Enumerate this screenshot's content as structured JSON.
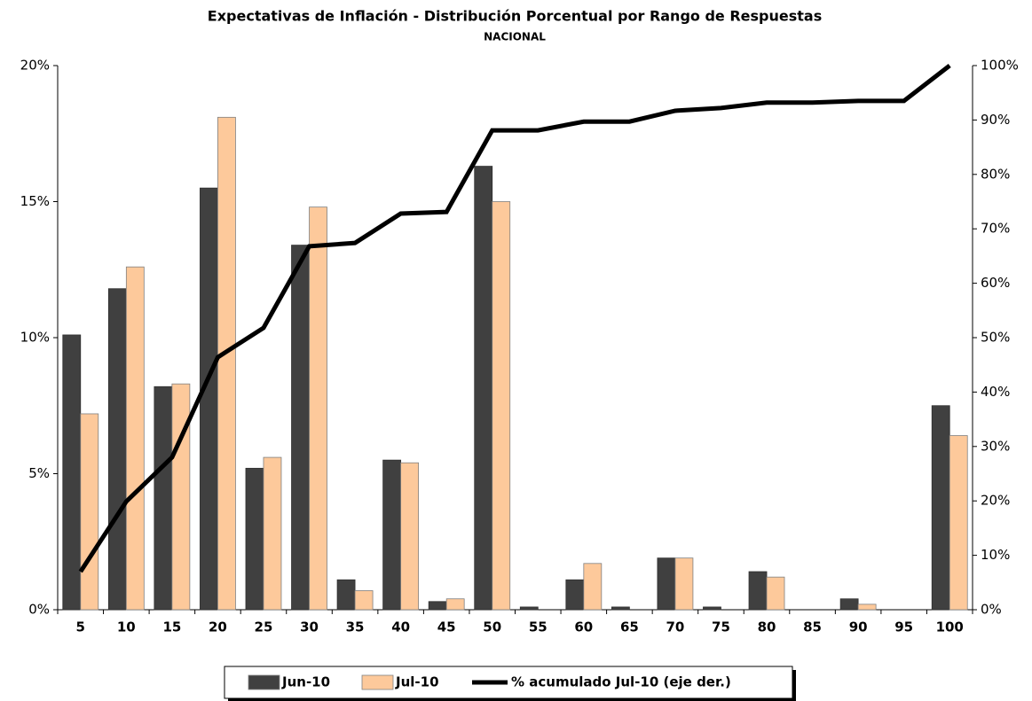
{
  "chart_data": {
    "type": "bar",
    "title": "Expectativas de Inflación - Distribución Porcentual por Rango de Respuestas",
    "subtitle": "NACIONAL",
    "categories": [
      "5",
      "10",
      "15",
      "20",
      "25",
      "30",
      "35",
      "40",
      "45",
      "50",
      "55",
      "60",
      "65",
      "70",
      "75",
      "80",
      "85",
      "90",
      "95",
      "100"
    ],
    "series": [
      {
        "name": "Jun-10",
        "color": "#404040",
        "values": [
          10.1,
          11.8,
          8.2,
          15.5,
          5.2,
          13.4,
          1.1,
          5.5,
          0.3,
          16.3,
          0.1,
          1.1,
          0.1,
          1.9,
          0.1,
          1.4,
          0,
          0.4,
          0,
          7.5
        ]
      },
      {
        "name": "Jul-10",
        "color": "#fdc99b",
        "values": [
          7.2,
          12.6,
          8.3,
          18.1,
          5.6,
          14.8,
          0.7,
          5.4,
          0.4,
          15.0,
          0,
          1.7,
          0,
          1.9,
          0,
          1.2,
          0,
          0.2,
          0,
          6.4
        ]
      },
      {
        "name": "% acumulado Jul-10 (eje der.)",
        "color": "#000000",
        "type": "line",
        "axis": "y2",
        "values": [
          7.0,
          19.9,
          28.0,
          46.4,
          51.8,
          66.8,
          67.4,
          72.8,
          73.1,
          88.1,
          88.1,
          89.7,
          89.7,
          91.7,
          92.2,
          93.2,
          93.2,
          93.5,
          93.5,
          100
        ]
      }
    ],
    "ylim": [
      0,
      20
    ],
    "yticks": [
      {
        "value": 0,
        "label": "0%"
      },
      {
        "value": 5,
        "label": "5%"
      },
      {
        "value": 10,
        "label": "10%"
      },
      {
        "value": 15,
        "label": "15%"
      },
      {
        "value": 20,
        "label": "20%"
      }
    ],
    "y2lim": [
      0,
      100
    ],
    "y2ticks": [
      {
        "value": 0,
        "label": "0%"
      },
      {
        "value": 10,
        "label": "10%"
      },
      {
        "value": 20,
        "label": "20%"
      },
      {
        "value": 30,
        "label": "30%"
      },
      {
        "value": 40,
        "label": "40%"
      },
      {
        "value": 50,
        "label": "50%"
      },
      {
        "value": 60,
        "label": "60%"
      },
      {
        "value": 70,
        "label": "70%"
      },
      {
        "value": 80,
        "label": "80%"
      },
      {
        "value": 90,
        "label": "90%"
      },
      {
        "value": 100,
        "label": "100%"
      }
    ],
    "grid": false,
    "legend": "bottom"
  }
}
